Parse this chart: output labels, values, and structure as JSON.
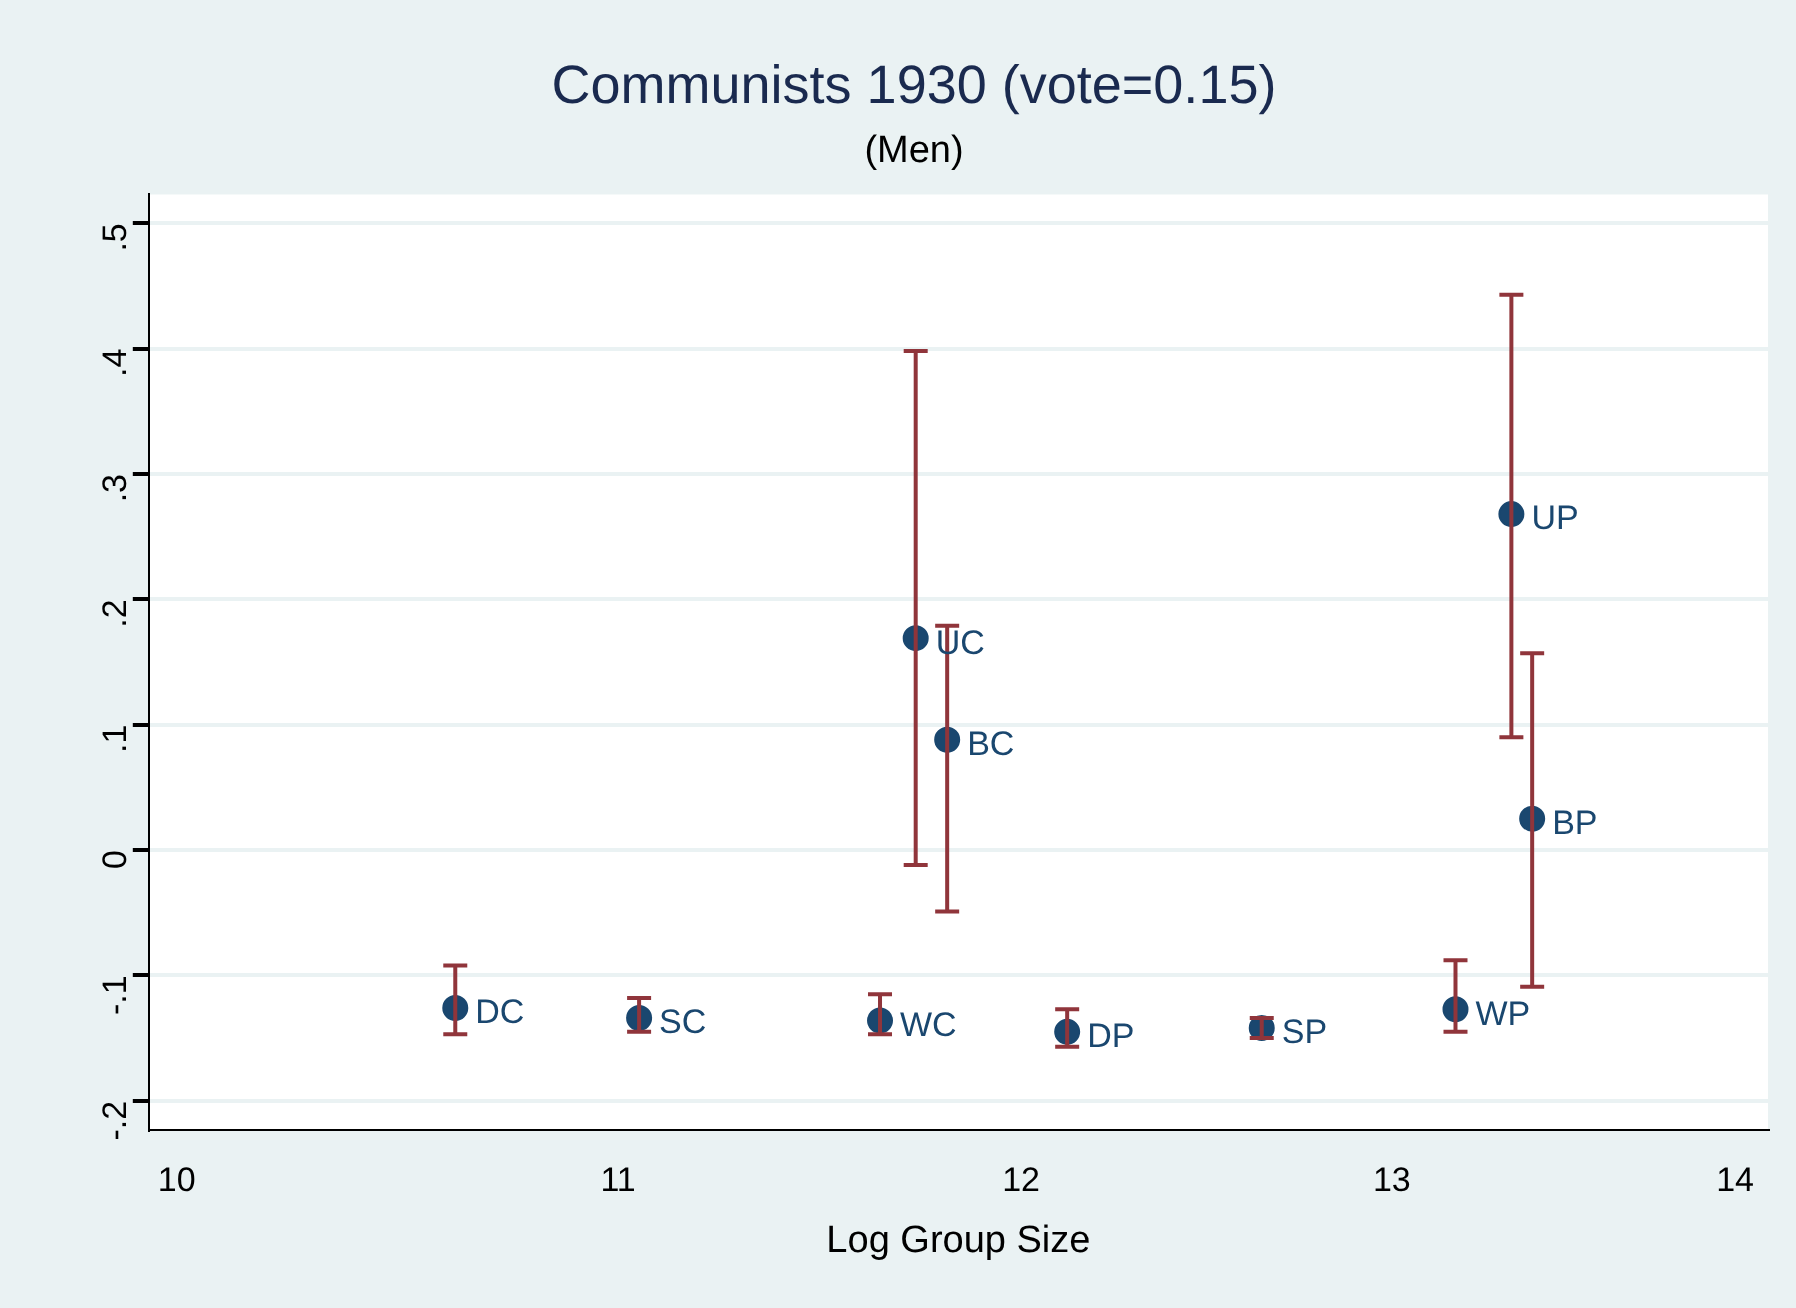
{
  "chart_data": {
    "type": "scatter",
    "title": "Communists 1930 (vote=0.15)",
    "subtitle": "(Men)",
    "xlabel": "Log Group Size",
    "x": [
      10.62,
      11.05,
      11.64,
      11.73,
      11.81,
      12.12,
      12.64,
      13.18,
      13.34,
      13.4
    ],
    "values": [
      -0.126,
      -0.134,
      -0.136,
      0.169,
      0.088,
      -0.145,
      -0.142,
      -0.127,
      0.268,
      0.025
    ],
    "errors": [
      [
        -0.147,
        -0.092
      ],
      [
        -0.145,
        -0.118
      ],
      [
        -0.147,
        -0.115
      ],
      [
        -0.012,
        0.398
      ],
      [
        -0.049,
        0.179
      ],
      [
        -0.157,
        -0.127
      ],
      [
        -0.15,
        -0.134
      ],
      [
        -0.145,
        -0.088
      ],
      [
        0.09,
        0.443
      ],
      [
        -0.109,
        0.157
      ]
    ],
    "value_labels": [
      "DC",
      "SC",
      "WC",
      "UC",
      "BC",
      "DP",
      "SP",
      "WP",
      "UP",
      "BP"
    ],
    "color": "#1a476f",
    "marker": "circle",
    "log": "x",
    "grid": "y",
    "legend": false,
    "xlim": [
      9.94,
      14.1
    ],
    "xticks": [
      10,
      11,
      12,
      13,
      14
    ],
    "ylim": [
      -0.223,
      0.523
    ],
    "yticks": [
      {
        "value": -0.2,
        "label": "-.2"
      },
      {
        "value": -0.1,
        "label": "-.1"
      },
      0,
      {
        "value": 0.1,
        "label": ".1"
      },
      {
        "value": 0.2,
        "label": ".2"
      },
      {
        "value": 0.3,
        "label": ".3"
      },
      {
        "value": 0.4,
        "label": ".4"
      },
      {
        "value": 0.5,
        "label": ".5"
      }
    ]
  }
}
